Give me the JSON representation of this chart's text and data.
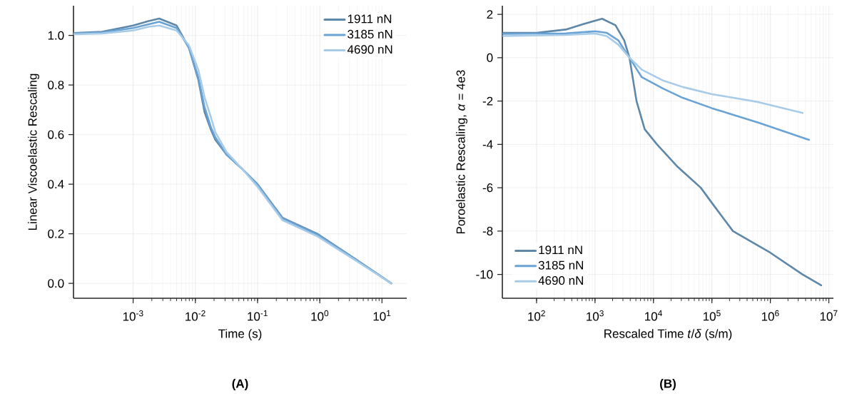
{
  "chart_data": [
    {
      "type": "line",
      "title": "(A)",
      "xlabel": "Time (s)",
      "ylabel": "Linear Viscoelastic Rescaling",
      "log": "x",
      "grid": true,
      "legend": "top right",
      "xlim": [
        0.00011,
        25
      ],
      "ylim": [
        -0.06,
        1.12
      ],
      "xticks": [
        {
          "value": 0.001,
          "label": "10$^{-3}$"
        },
        {
          "value": 0.01,
          "label": "10$^{-2}$"
        },
        {
          "value": 0.1,
          "label": "10$^{-1}$"
        },
        {
          "value": 1,
          "label": "10$^{0}$"
        },
        {
          "value": 10,
          "label": "10$^{1}$"
        }
      ],
      "yticks": [
        {
          "value": 0,
          "label": "0.0"
        },
        {
          "value": 0.2,
          "label": "0.2"
        },
        {
          "value": 0.4,
          "label": "0.4"
        },
        {
          "value": 0.6,
          "label": "0.6"
        },
        {
          "value": 0.8,
          "label": "0.8"
        },
        {
          "value": 1,
          "label": "1.0"
        }
      ],
      "x": [
        0.000112,
        0.000316,
        0.001,
        0.00178,
        0.00263,
        0.005,
        0.0079,
        0.0112,
        0.0141,
        0.0178,
        0.0209,
        0.0316,
        0.0575,
        0.1,
        0.251,
        0.912,
        3.63,
        14.1
      ],
      "series": [
        {
          "name": "1911 nN",
          "color": "#5f87a8",
          "values": [
            1.01,
            1.015,
            1.04,
            1.058,
            1.068,
            1.04,
            0.95,
            0.82,
            0.69,
            0.62,
            0.58,
            0.52,
            0.46,
            0.4,
            0.265,
            0.2,
            0.1,
            0.0
          ]
        },
        {
          "name": "3185 nN",
          "color": "#6aa3d5",
          "values": [
            1.008,
            1.012,
            1.03,
            1.045,
            1.055,
            1.03,
            0.95,
            0.83,
            0.71,
            0.63,
            0.59,
            0.52,
            0.46,
            0.4,
            0.262,
            0.197,
            0.1,
            0.0
          ]
        },
        {
          "name": "4690 nN",
          "color": "#a8cbe8",
          "values": [
            1.005,
            1.008,
            1.02,
            1.035,
            1.04,
            1.02,
            0.96,
            0.86,
            0.75,
            0.67,
            0.61,
            0.53,
            0.46,
            0.39,
            0.255,
            0.19,
            0.095,
            0.0
          ]
        }
      ]
    },
    {
      "type": "line",
      "title": "(B)",
      "xlabel": "Rescaled Time *t*/*δ* (s/m)",
      "ylabel": "Poroelastic Rescaling, *α* = 4e3",
      "log": "x",
      "grid": true,
      "legend": "bottom left",
      "xlim": [
        26,
        12000000
      ],
      "ylim": [
        -11.1,
        2.4
      ],
      "xticks": [
        {
          "value": 100,
          "label": "10$^{2}$"
        },
        {
          "value": 1000,
          "label": "10$^{3}$"
        },
        {
          "value": 10000,
          "label": "10$^{4}$"
        },
        {
          "value": 100000,
          "label": "10$^{5}$"
        },
        {
          "value": 1000000,
          "label": "10$^{6}$"
        },
        {
          "value": 10000000,
          "label": "10$^{7}$"
        }
      ],
      "yticks": [
        -10,
        -8,
        -6,
        -4,
        -2,
        0,
        2
      ],
      "series": [
        {
          "name": "1911 nN",
          "color": "#5f87a8",
          "x": [
            27,
            100,
            316,
            631,
            1320,
            2240,
            3160,
            3890,
            5130,
            7080,
            11500,
            25100,
            64600,
            100000,
            229000,
            1000000,
            3550000,
            7410000
          ],
          "values": [
            1.15,
            1.15,
            1.3,
            1.55,
            1.8,
            1.5,
            0.8,
            0.0,
            -2.0,
            -3.3,
            -4.0,
            -5.0,
            -6.0,
            -6.7,
            -8.0,
            -9.0,
            -10.0,
            -10.5
          ]
        },
        {
          "name": "3185 nN",
          "color": "#6aa3d5",
          "x": [
            27,
            316,
            1000,
            1580,
            2510,
            3890,
            6310,
            14800,
            31600,
            100000,
            631000,
            4570000
          ],
          "values": [
            1.1,
            1.12,
            1.22,
            1.15,
            0.8,
            0.0,
            -0.9,
            -1.43,
            -1.85,
            -2.33,
            -3.0,
            -3.79
          ]
        },
        {
          "name": "4690 nN",
          "color": "#a8cbe8",
          "x": [
            27,
            316,
            1000,
            1580,
            2510,
            3890,
            6310,
            14800,
            31600,
            100000,
            631000,
            3550000
          ],
          "values": [
            1.0,
            1.05,
            1.12,
            1.0,
            0.6,
            0.0,
            -0.55,
            -1.06,
            -1.35,
            -1.68,
            -2.05,
            -2.55
          ]
        }
      ]
    }
  ]
}
